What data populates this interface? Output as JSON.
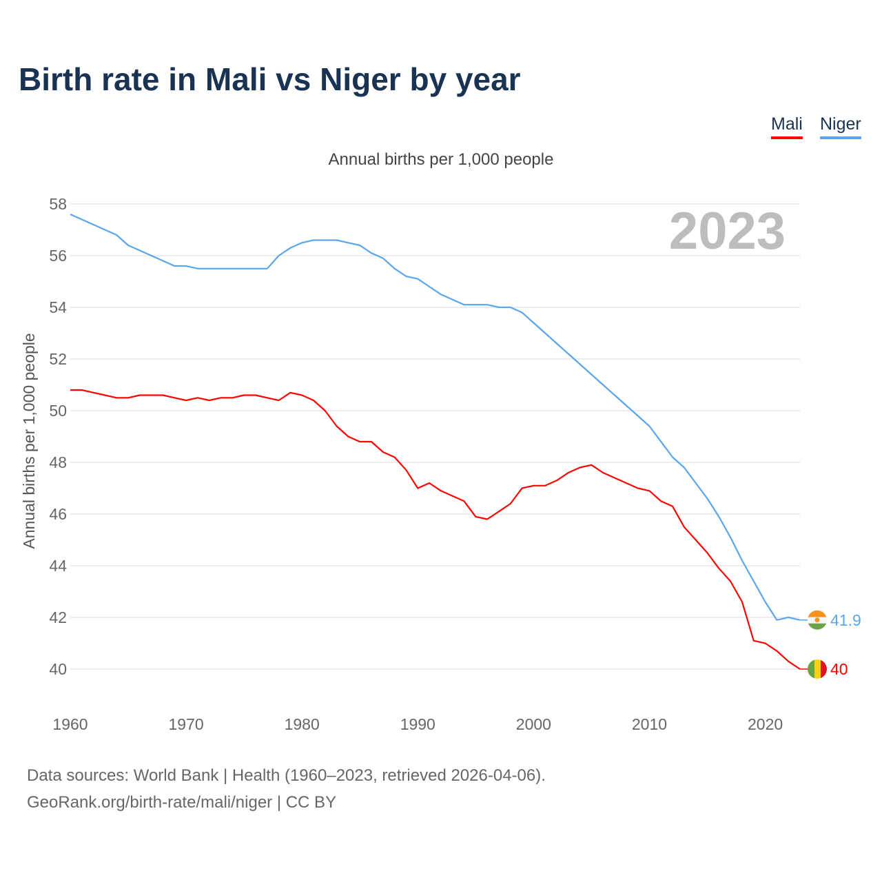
{
  "title": "Birth rate in Mali vs Niger by year",
  "legend": [
    {
      "label": "Mali",
      "color": "#ff0000"
    },
    {
      "label": "Niger",
      "color": "#5aa5ec"
    }
  ],
  "footer": {
    "line1": "Data sources: World Bank | Health (1960–2023, retrieved 2026-04-06).",
    "line2": "GeoRank.org/birth-rate/mali/niger | CC BY"
  },
  "chart_data": {
    "type": "line",
    "title": "Birth rate in Mali vs Niger by year",
    "subtitle": "Annual births per 1,000 people",
    "ylabel": "Annual births per 1,000 people",
    "xlabel": "",
    "year_label": "2023",
    "xlim": [
      1960,
      2023
    ],
    "ylim": [
      40,
      58
    ],
    "xticks": [
      1960,
      1970,
      1980,
      1990,
      2000,
      2010,
      2020
    ],
    "yticks": [
      40,
      42,
      44,
      46,
      48,
      50,
      52,
      54,
      56,
      58
    ],
    "grid": true,
    "legend_position": "top-right",
    "x_start": 1960,
    "series": [
      {
        "name": "Mali",
        "color": "#ff0000",
        "end_label": "40",
        "values": [
          50.8,
          50.8,
          50.7,
          50.6,
          50.5,
          50.5,
          50.6,
          50.6,
          50.6,
          50.5,
          50.4,
          50.5,
          50.4,
          50.5,
          50.5,
          50.6,
          50.6,
          50.5,
          50.4,
          50.7,
          50.6,
          50.4,
          50.0,
          49.4,
          49.0,
          48.8,
          48.8,
          48.4,
          48.2,
          47.7,
          47.0,
          47.2,
          46.9,
          46.7,
          46.5,
          45.9,
          45.8,
          46.1,
          46.4,
          47.0,
          47.1,
          47.1,
          47.3,
          47.6,
          47.8,
          47.9,
          47.6,
          47.4,
          47.2,
          47.0,
          46.9,
          46.5,
          46.3,
          45.5,
          45.0,
          44.5,
          43.9,
          43.4,
          42.6,
          41.1,
          41.0,
          40.7,
          40.3,
          40.0
        ]
      },
      {
        "name": "Niger",
        "color": "#5aa5ec",
        "end_label": "41.9",
        "values": [
          57.6,
          57.4,
          57.2,
          57.0,
          56.8,
          56.4,
          56.2,
          56.0,
          55.8,
          55.6,
          55.6,
          55.5,
          55.5,
          55.5,
          55.5,
          55.5,
          55.5,
          55.5,
          56.0,
          56.3,
          56.5,
          56.6,
          56.6,
          56.6,
          56.5,
          56.4,
          56.1,
          55.9,
          55.5,
          55.2,
          55.1,
          54.8,
          54.5,
          54.3,
          54.1,
          54.1,
          54.1,
          54.0,
          54.0,
          53.8,
          53.4,
          53.0,
          52.6,
          52.2,
          51.8,
          51.4,
          51.0,
          50.6,
          50.2,
          49.8,
          49.4,
          48.8,
          48.2,
          47.8,
          47.2,
          46.6,
          45.9,
          45.1,
          44.2,
          43.4,
          42.6,
          41.9,
          42.0,
          41.9
        ]
      }
    ]
  }
}
